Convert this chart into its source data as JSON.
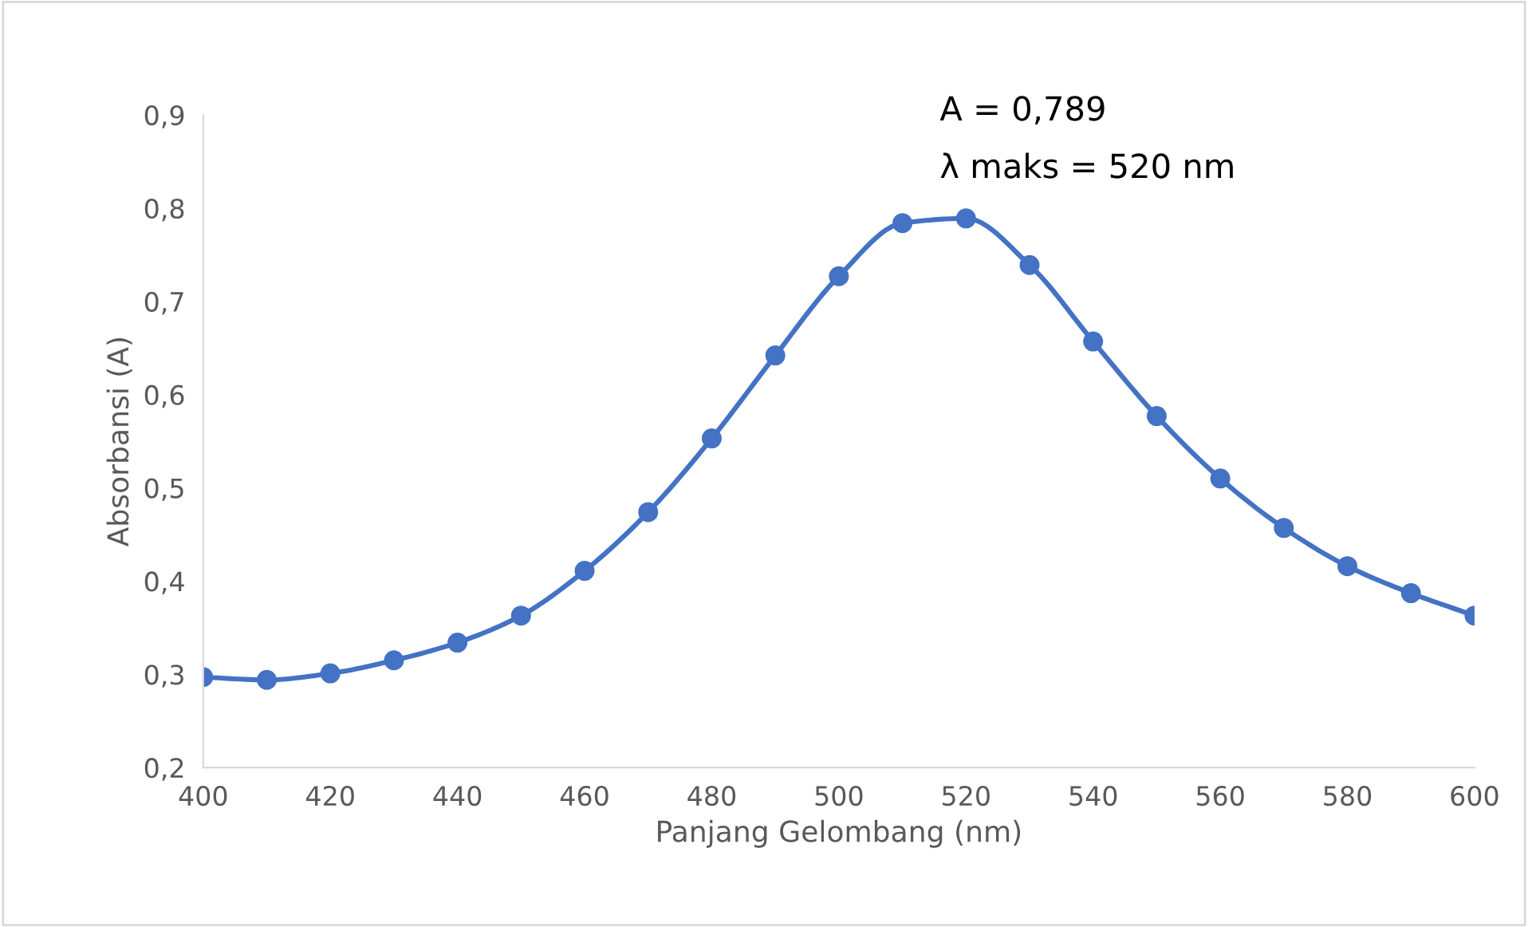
{
  "chart_data": {
    "type": "line",
    "xlabel": "Panjang Gelombang (nm)",
    "ylabel": "Absorbansi (A)",
    "x": [
      400,
      410,
      420,
      430,
      440,
      450,
      460,
      470,
      480,
      490,
      500,
      510,
      520,
      530,
      540,
      550,
      560,
      570,
      580,
      590,
      600
    ],
    "series": [
      {
        "color": "#4472c4",
        "values": [
          0.297,
          0.294,
          0.301,
          0.315,
          0.334,
          0.363,
          0.411,
          0.474,
          0.553,
          0.642,
          0.727,
          0.784,
          0.789,
          0.739,
          0.657,
          0.577,
          0.51,
          0.457,
          0.416,
          0.387,
          0.363
        ]
      }
    ],
    "xlim": [
      400,
      600
    ],
    "xticks": [
      400,
      420,
      440,
      460,
      480,
      500,
      520,
      540,
      560,
      580,
      600
    ],
    "ylim": [
      0.2,
      0.9
    ],
    "yticks": [
      {
        "value": 0.2,
        "label": "0,2"
      },
      {
        "value": 0.3,
        "label": "0,3"
      },
      {
        "value": 0.4,
        "label": "0,4"
      },
      {
        "value": 0.5,
        "label": "0,5"
      },
      {
        "value": 0.6,
        "label": "0,6"
      },
      {
        "value": 0.7,
        "label": "0,7"
      },
      {
        "value": 0.8,
        "label": "0,8"
      },
      {
        "value": 0.9,
        "label": "0,9"
      }
    ],
    "annotations": [
      "A = 0,789",
      "λ maks = 520 nm"
    ],
    "grid": false,
    "marker": "circle",
    "line_style": "solid"
  }
}
